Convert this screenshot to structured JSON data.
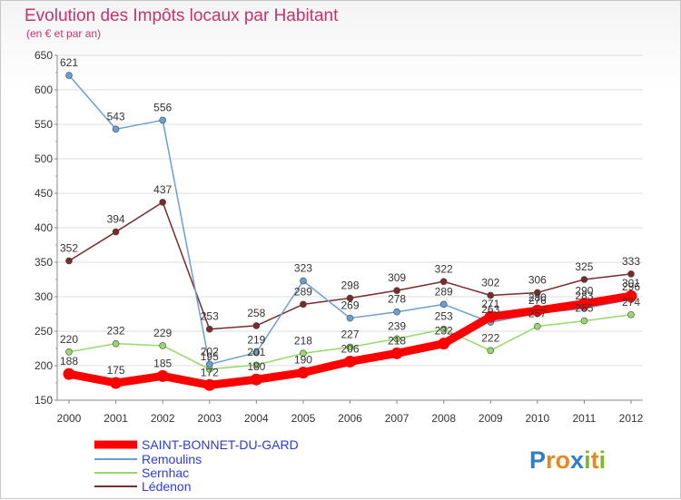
{
  "chart_data": {
    "type": "line",
    "title": "Evolution des Impôts locaux par Habitant",
    "subtitle": "(en € et par an)",
    "x": [
      "2000",
      "2001",
      "2002",
      "2003",
      "2004",
      "2005",
      "2006",
      "2007",
      "2008",
      "2009",
      "2010",
      "2011",
      "2012"
    ],
    "ylim": [
      150,
      650
    ],
    "yticks": [
      150,
      200,
      250,
      300,
      350,
      400,
      450,
      500,
      550,
      600,
      650
    ],
    "grid": "horizontal",
    "series": [
      {
        "name": "SAINT-BONNET-DU-GARD",
        "color": "#ff0000",
        "values": [
          188,
          175,
          185,
          172,
          180,
          190,
          206,
          218,
          232,
          271,
          280,
          290,
          301
        ]
      },
      {
        "name": "Remoulins",
        "color": "#6a9fd4",
        "values": [
          621,
          543,
          556,
          202,
          219,
          323,
          269,
          278,
          289,
          263,
          276,
          283,
          296
        ]
      },
      {
        "name": "Sernhac",
        "color": "#96d86a",
        "values": [
          220,
          232,
          229,
          195,
          201,
          218,
          227,
          239,
          253,
          222,
          257,
          265,
          274
        ]
      },
      {
        "name": "Lédenon",
        "color": "#7a2b2b",
        "values": [
          352,
          394,
          437,
          253,
          258,
          289,
          298,
          309,
          322,
          302,
          306,
          325,
          333
        ]
      }
    ]
  },
  "logo": {
    "text": "Proxiti",
    "letters": [
      "P",
      "r",
      "o",
      "x",
      "i",
      "t",
      "i"
    ],
    "colors": [
      "#2f7fc8",
      "#e8871e",
      "#e8871e",
      "#2f7fc8",
      "#7fb82f",
      "#e8871e",
      "#7fb82f"
    ]
  }
}
